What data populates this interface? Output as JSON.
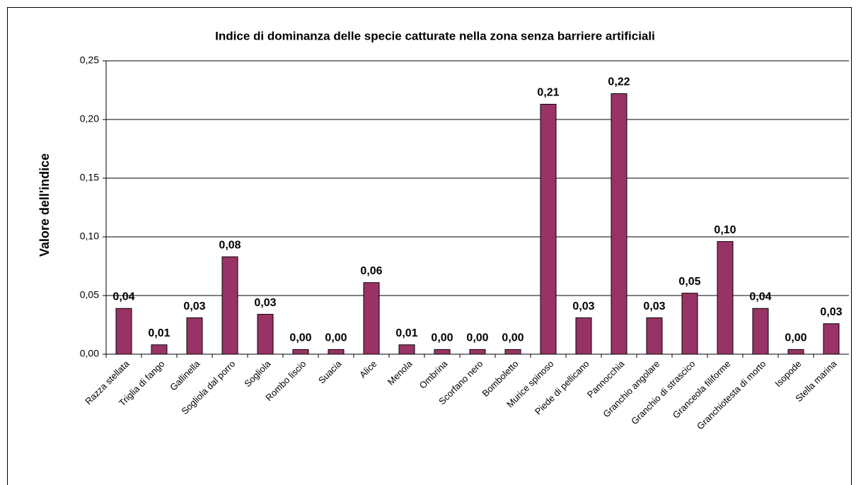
{
  "chart_data": {
    "type": "bar",
    "title": "Indice di dominanza delle specie catturate nella zona senza barriere artificiali",
    "y_label": "Valore dell'indice",
    "categories": [
      "Razza stellata",
      "Triglia di fango",
      "Gallinella",
      "Sogliola dal porro",
      "Sogliola",
      "Rombo liscio",
      "Suacia",
      "Alice",
      "Menola",
      "Ombrina",
      "Scorfano nero",
      "Bomboletto",
      "Murice spinoso",
      "Piede di pellicano",
      "Pannocchia",
      "Granchio angolare",
      "Granchio di strascico",
      "Granceola filiforme",
      "Granchiotesta di morto",
      "Isopode",
      "Stella marina"
    ],
    "values": [
      0.039,
      0.008,
      0.031,
      0.083,
      0.034,
      0.004,
      0.004,
      0.061,
      0.008,
      0.004,
      0.004,
      0.004,
      0.213,
      0.031,
      0.222,
      0.031,
      0.052,
      0.096,
      0.039,
      0.004,
      0.026
    ],
    "value_labels": [
      "0,04",
      "0,01",
      "0,03",
      "0,08",
      "0,03",
      "0,00",
      "0,00",
      "0,06",
      "0,01",
      "0,00",
      "0,00",
      "0,00",
      "0,21",
      "0,03",
      "0,22",
      "0,03",
      "0,05",
      "0,10",
      "0,04",
      "0,00",
      "0,03"
    ],
    "color": "#993366",
    "ylim": [
      0,
      0.25
    ],
    "yticks": [
      {
        "value": 0,
        "label": "0,00"
      },
      {
        "value": 0.05,
        "label": "0,05"
      },
      {
        "value": 0.1,
        "label": "0,10"
      },
      {
        "value": 0.15,
        "label": "0,15"
      },
      {
        "value": 0.2,
        "label": "0,20"
      },
      {
        "value": 0.25,
        "label": "0,25"
      }
    ],
    "grid": true
  }
}
